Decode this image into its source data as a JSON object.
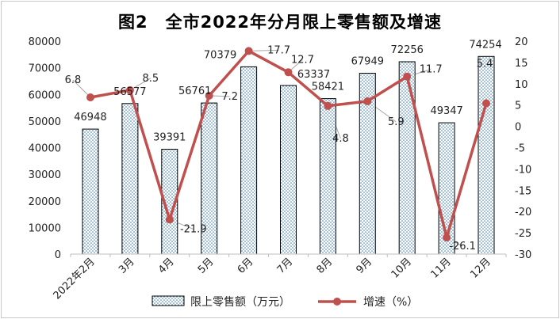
{
  "chart_data": {
    "type": "bar",
    "title": "图2　全市2022年分月限上零售额及增速",
    "categories": [
      "2022年2月",
      "3月",
      "4月",
      "5月",
      "6月",
      "7月",
      "8月",
      "9月",
      "10月",
      "11月",
      "12月"
    ],
    "series": [
      {
        "name": "限上零售额（万元）",
        "type": "bar",
        "axis": "left",
        "values": [
          46948,
          56577,
          39391,
          56761,
          70379,
          63337,
          58421,
          67949,
          72256,
          49347,
          74254
        ],
        "labels": [
          "46948",
          "56577",
          "39391",
          "56761",
          "70379",
          "63337",
          "58421",
          "67949",
          "72256",
          "49347",
          "74254"
        ]
      },
      {
        "name": "增速（%）",
        "type": "line",
        "axis": "right",
        "values": [
          6.8,
          8.5,
          -21.9,
          7.2,
          17.7,
          12.7,
          4.8,
          5.9,
          11.7,
          -26.1,
          5.4
        ],
        "labels": [
          "6.8",
          "8.5",
          "-21.9",
          "7.2",
          "17.7",
          "12.7",
          "4.8",
          "5.9",
          "11.7",
          "-26.1",
          "5.4"
        ],
        "color": "#c0504d"
      }
    ],
    "y_left": {
      "min": 0,
      "max": 80000,
      "ticks": [
        "0",
        "10000",
        "20000",
        "30000",
        "40000",
        "50000",
        "60000",
        "70000",
        "80000"
      ]
    },
    "y_right": {
      "min": -30,
      "max": 20,
      "ticks": [
        "-30",
        "-25",
        "-20",
        "-15",
        "-10",
        "-5",
        "0",
        "5",
        "10",
        "15",
        "20"
      ]
    },
    "grid": false,
    "legend_position": "bottom",
    "colors": {
      "bar_fill": "#ffffff",
      "bar_dots": "#2f6f9f",
      "bar_border": "#000000",
      "line": "#c0504d",
      "leader": "#a6a6a6"
    }
  }
}
